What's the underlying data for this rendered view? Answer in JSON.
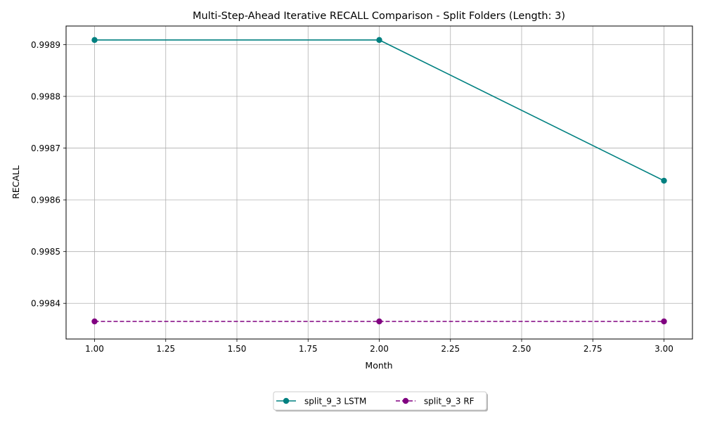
{
  "chart_data": {
    "type": "line",
    "title": "Multi-Step-Ahead Iterative RECALL Comparison - Split Folders (Length: 3)",
    "xlabel": "Month",
    "ylabel": "RECALL",
    "x": [
      1.0,
      2.0,
      3.0
    ],
    "xlim": [
      0.9,
      3.1
    ],
    "ylim": [
      0.998331,
      0.998936
    ],
    "xticks": [
      "1.00",
      "1.25",
      "1.50",
      "1.75",
      "2.00",
      "2.25",
      "2.50",
      "2.75",
      "3.00"
    ],
    "yticks": [
      "0.9984",
      "0.9985",
      "0.9986",
      "0.9987",
      "0.9988",
      "0.9989"
    ],
    "grid": true,
    "legend_position": "bottom-center",
    "series": [
      {
        "name": "split_9_3 LSTM",
        "values": [
          0.998909,
          0.998909,
          0.998637
        ],
        "color": "#008080",
        "style": "solid",
        "marker": "circle"
      },
      {
        "name": "split_9_3 RF",
        "values": [
          0.998365,
          0.998365,
          0.998365
        ],
        "color": "#800080",
        "style": "dashed",
        "marker": "circle"
      }
    ]
  }
}
